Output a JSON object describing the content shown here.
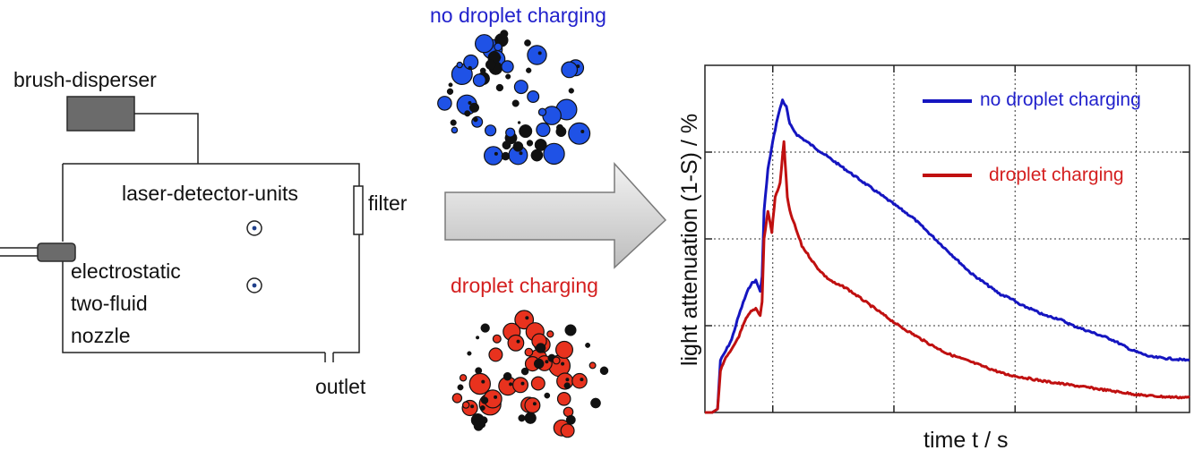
{
  "setup": {
    "brush_disperser": "brush-disperser",
    "laser_detector_units": "laser-detector-units",
    "filter": "filter",
    "nozzle_line1": "electrostatic",
    "nozzle_line2": "two-fluid",
    "nozzle_line3": "nozzle",
    "outlet": "outlet"
  },
  "insets": {
    "top_label": "no droplet charging",
    "bottom_label": "droplet charging"
  },
  "colors": {
    "no_charging": "#1f52e6",
    "charging": "#e8321e",
    "particle": "#111111",
    "blue_line": "#1515c0",
    "red_line": "#c01010",
    "arrow_fill": "#d9d9d9"
  },
  "chart_data": {
    "type": "line",
    "xlabel": "time t / s",
    "ylabel": "light attenuation (1-S) / %",
    "xlim": [
      0,
      100
    ],
    "ylim": [
      0,
      100
    ],
    "grid": true,
    "legend_position": "top-right",
    "series": [
      {
        "name": "no droplet charging",
        "color": "#1515c0",
        "points": [
          [
            0,
            0
          ],
          [
            1.5,
            0
          ],
          [
            2.6,
            1
          ],
          [
            3.2,
            15
          ],
          [
            4,
            17
          ],
          [
            5.5,
            21
          ],
          [
            7,
            28
          ],
          [
            8.5,
            34
          ],
          [
            9.5,
            37
          ],
          [
            10.5,
            38
          ],
          [
            11.4,
            35
          ],
          [
            11.8,
            39
          ],
          [
            12.2,
            58
          ],
          [
            13,
            70
          ],
          [
            14,
            78
          ],
          [
            15,
            85
          ],
          [
            16,
            90
          ],
          [
            16.8,
            88
          ],
          [
            17.5,
            83
          ],
          [
            19,
            80
          ],
          [
            21,
            78
          ],
          [
            23,
            76
          ],
          [
            25,
            74
          ],
          [
            28,
            71
          ],
          [
            31,
            68
          ],
          [
            34,
            65
          ],
          [
            37,
            62
          ],
          [
            40,
            59
          ],
          [
            43,
            56
          ],
          [
            46,
            52
          ],
          [
            49,
            48
          ],
          [
            52,
            44
          ],
          [
            55,
            40
          ],
          [
            58,
            37
          ],
          [
            61,
            34
          ],
          [
            63,
            33
          ],
          [
            65,
            31
          ],
          [
            67,
            30
          ],
          [
            70,
            28
          ],
          [
            73,
            27
          ],
          [
            76,
            25
          ],
          [
            80,
            23
          ],
          [
            84,
            21
          ],
          [
            88,
            18
          ],
          [
            92,
            16
          ],
          [
            96,
            15.5
          ],
          [
            100,
            15
          ]
        ]
      },
      {
        "name": "droplet charging",
        "color": "#c01010",
        "points": [
          [
            0,
            0
          ],
          [
            1.5,
            0
          ],
          [
            2.6,
            1
          ],
          [
            3.2,
            12
          ],
          [
            4,
            15
          ],
          [
            5.5,
            18
          ],
          [
            7,
            22
          ],
          [
            8.5,
            27
          ],
          [
            9.5,
            29
          ],
          [
            10.5,
            30
          ],
          [
            11.4,
            28
          ],
          [
            11.8,
            32
          ],
          [
            12.2,
            50
          ],
          [
            13,
            58
          ],
          [
            13.8,
            52
          ],
          [
            14.5,
            62
          ],
          [
            15.5,
            66
          ],
          [
            16.3,
            78
          ],
          [
            17,
            62
          ],
          [
            17.5,
            58
          ],
          [
            18.5,
            54
          ],
          [
            20,
            48
          ],
          [
            21.5,
            45
          ],
          [
            23,
            42
          ],
          [
            25,
            39
          ],
          [
            27,
            37
          ],
          [
            29,
            36
          ],
          [
            31,
            34
          ],
          [
            34,
            31
          ],
          [
            37,
            28
          ],
          [
            40,
            25
          ],
          [
            43,
            22.5
          ],
          [
            46,
            20
          ],
          [
            50,
            17
          ],
          [
            54,
            15
          ],
          [
            58,
            13
          ],
          [
            62,
            11
          ],
          [
            66,
            10
          ],
          [
            70,
            9
          ],
          [
            75,
            8
          ],
          [
            80,
            7
          ],
          [
            85,
            6
          ],
          [
            90,
            5
          ],
          [
            95,
            4.5
          ],
          [
            100,
            4.3
          ]
        ]
      }
    ]
  }
}
